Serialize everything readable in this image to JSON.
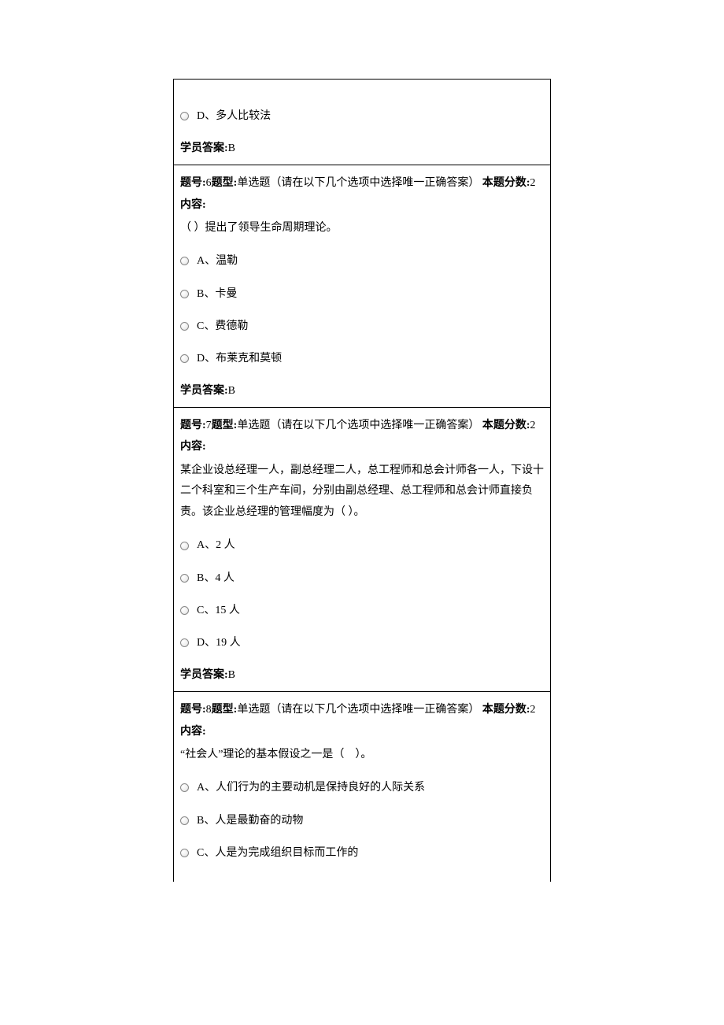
{
  "blocks": [
    {
      "prev_option": "D、多人比较法",
      "answer_label": "学员答案:",
      "answer_value": "B"
    },
    {
      "header_parts": {
        "qnum_label": "题号:",
        "qnum": "6",
        "qtype_label": "题型:",
        "qtype": "单选题（请在以下几个选项中选择唯一正确答案）",
        "score_prefix": "本题分数:",
        "score": "2"
      },
      "content_label": "内容:",
      "content": "（ ）提出了领导生命周期理论。",
      "options": [
        "A、温勒",
        "B、卡曼",
        "C、费德勒",
        "D、布莱克和莫顿"
      ],
      "answer_label": "学员答案:",
      "answer_value": "B"
    },
    {
      "header_parts": {
        "qnum_label": "题号:",
        "qnum": "7",
        "qtype_label": "题型:",
        "qtype": "单选题（请在以下几个选项中选择唯一正确答案）",
        "score_prefix": "本题分数:",
        "score": "2"
      },
      "content_label": "内容:",
      "content": "某企业设总经理一人，副总经理二人，总工程师和总会计师各一人，下设十二个科室和三个生产车间，分别由副总经理、总工程师和总会计师直接负责。该企业总经理的管理幅度为（ ）。",
      "options": [
        "A、2 人",
        "B、4 人",
        "C、15 人",
        "D、19 人"
      ],
      "answer_label": "学员答案:",
      "answer_value": "B"
    },
    {
      "header_parts": {
        "qnum_label": "题号:",
        "qnum": "8",
        "qtype_label": "题型:",
        "qtype": "单选题（请在以下几个选项中选择唯一正确答案）",
        "score_prefix": "本题分数:",
        "score": "2"
      },
      "content_label": "内容:",
      "content": "“社会人”理论的基本假设之一是（　）。",
      "options": [
        "A、人们行为的主要动机是保持良好的人际关系",
        "B、人是最勤奋的动物",
        "C、人是为完成组织目标而工作的"
      ]
    }
  ]
}
